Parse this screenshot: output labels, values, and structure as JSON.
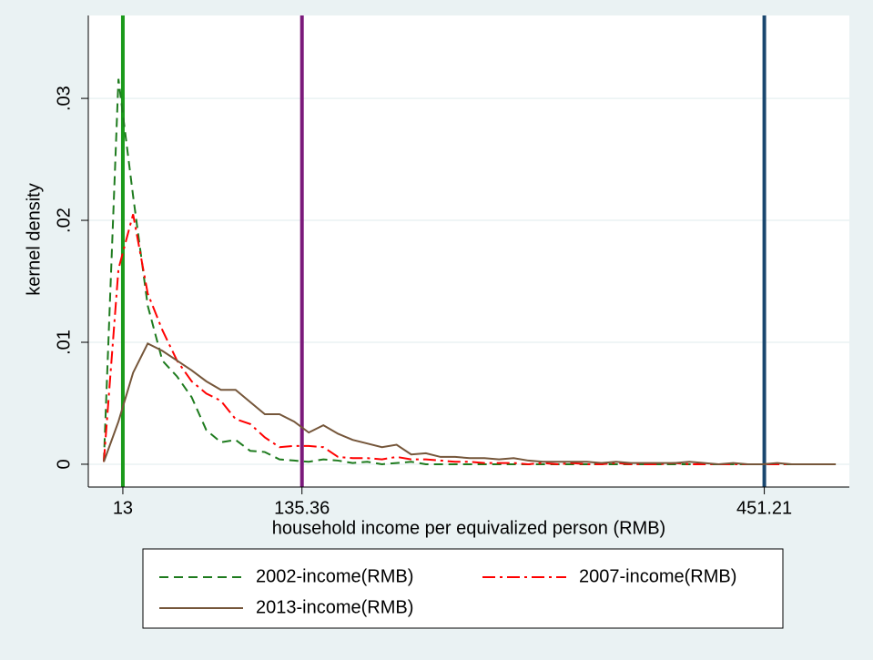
{
  "chart_data": {
    "type": "line",
    "x_label": "household income per equivalized person (RMB)",
    "y_label": "kernel density",
    "x": [
      0,
      10,
      20,
      30,
      40,
      50,
      60,
      70,
      80,
      90,
      100,
      110,
      120,
      130,
      140,
      150,
      160,
      170,
      180,
      190,
      200,
      210,
      220,
      230,
      240,
      250,
      260,
      270,
      280,
      290,
      300,
      310,
      320,
      330,
      340,
      350,
      360,
      370,
      380,
      390,
      400,
      410,
      420,
      430,
      440,
      450,
      460,
      470,
      480,
      490,
      500
    ],
    "series": [
      {
        "name": "2002-income(RMB)",
        "color": "#1e7b1e",
        "dash": "10,6",
        "values": [
          0.0002,
          0.0316,
          0.022,
          0.013,
          0.0085,
          0.0072,
          0.0055,
          0.0028,
          0.0018,
          0.002,
          0.0011,
          0.001,
          0.0004,
          0.0003,
          0.0002,
          0.0004,
          0.0003,
          0.0001,
          0.0002,
          0,
          0.0001,
          0.0002,
          0,
          0,
          0,
          0,
          0,
          0,
          0,
          0,
          0,
          0,
          0,
          0,
          0,
          0,
          0,
          0,
          0,
          0,
          0,
          0,
          0,
          0,
          0,
          0,
          0,
          0,
          0,
          0,
          0
        ]
      },
      {
        "name": "2007-income(RMB)",
        "color": "#ff0000",
        "dash": "14,5,3,5",
        "values": [
          0.0002,
          0.016,
          0.0205,
          0.014,
          0.011,
          0.0085,
          0.0068,
          0.0058,
          0.0052,
          0.0037,
          0.0033,
          0.0022,
          0.0014,
          0.0015,
          0.0015,
          0.0014,
          0.0006,
          0.0005,
          0.0005,
          0.0004,
          0.0006,
          0.0004,
          0.0004,
          0.0003,
          0.0002,
          0.0002,
          0.0001,
          0.0001,
          0.0001,
          0,
          0.0001,
          0,
          0.0001,
          0,
          0,
          0.0001,
          0,
          0,
          0,
          0.0001,
          0,
          0,
          0,
          0,
          0,
          0,
          0,
          0,
          0,
          0,
          0
        ]
      },
      {
        "name": "2013-income(RMB)",
        "color": "#75563a",
        "dash": "none",
        "values": [
          0.0002,
          0.0035,
          0.0075,
          0.0099,
          0.0093,
          0.0085,
          0.0077,
          0.0068,
          0.0061,
          0.0061,
          0.0051,
          0.0041,
          0.0041,
          0.0035,
          0.0026,
          0.0032,
          0.0025,
          0.002,
          0.0017,
          0.0014,
          0.0016,
          0.0008,
          0.0009,
          0.0006,
          0.0006,
          0.0005,
          0.0005,
          0.0004,
          0.0005,
          0.0003,
          0.0002,
          0.0002,
          0.0002,
          0.0002,
          0.0001,
          0.0002,
          0.0001,
          0.0001,
          0.0001,
          0.0001,
          0.0002,
          0.0001,
          0,
          0.0001,
          0,
          0,
          0.0001,
          0,
          0,
          0,
          0
        ]
      }
    ],
    "reference_lines": [
      {
        "value": 13,
        "color": "#1a9a1a"
      },
      {
        "value": 135.36,
        "color": "#7b1a7b"
      },
      {
        "value": 451.21,
        "color": "#1a476f"
      }
    ],
    "xlim": [
      -10.6,
      509.3
    ],
    "xticks": [
      13,
      135.36,
      451.21
    ],
    "ylim": [
      -0.00187,
      0.0368
    ],
    "yticks": [
      0,
      {
        "value": 0.01,
        "label": ".01"
      },
      {
        "value": 0.02,
        "label": ".02"
      },
      {
        "value": 0.03,
        "label": ".03"
      }
    ],
    "grid": true
  }
}
